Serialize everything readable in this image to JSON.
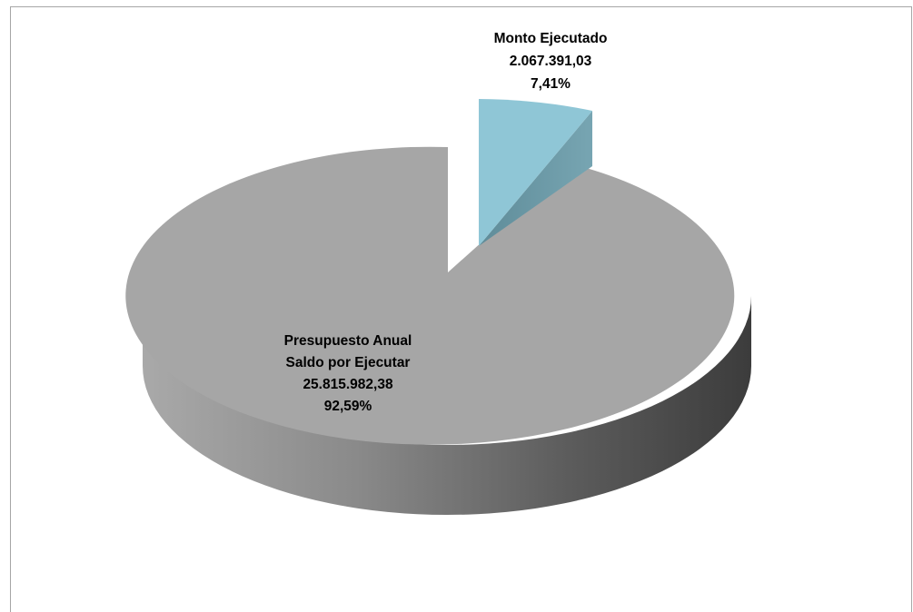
{
  "chart_data": {
    "type": "pie",
    "title": "",
    "series": [
      {
        "name": "",
        "slices": [
          {
            "label_lines": [
              "Monto Ejecutado"
            ],
            "value_text": "2.067.391,03",
            "percent_text": "7,41%",
            "value": 2067391.03,
            "percent": 7.41,
            "color": "#8fc6d6",
            "side_color": "#6798a6",
            "exploded": true
          },
          {
            "label_lines": [
              "Presupuesto Anual",
              "Saldo por Ejecutar"
            ],
            "value_text": "25.815.982,38",
            "percent_text": "92,59%",
            "value": 25815982.38,
            "percent": 92.59,
            "color": "#a6a6a6",
            "side_color": "#6e6e6e",
            "exploded": false
          }
        ]
      }
    ],
    "style": "3d-exploded",
    "legend": "none"
  }
}
